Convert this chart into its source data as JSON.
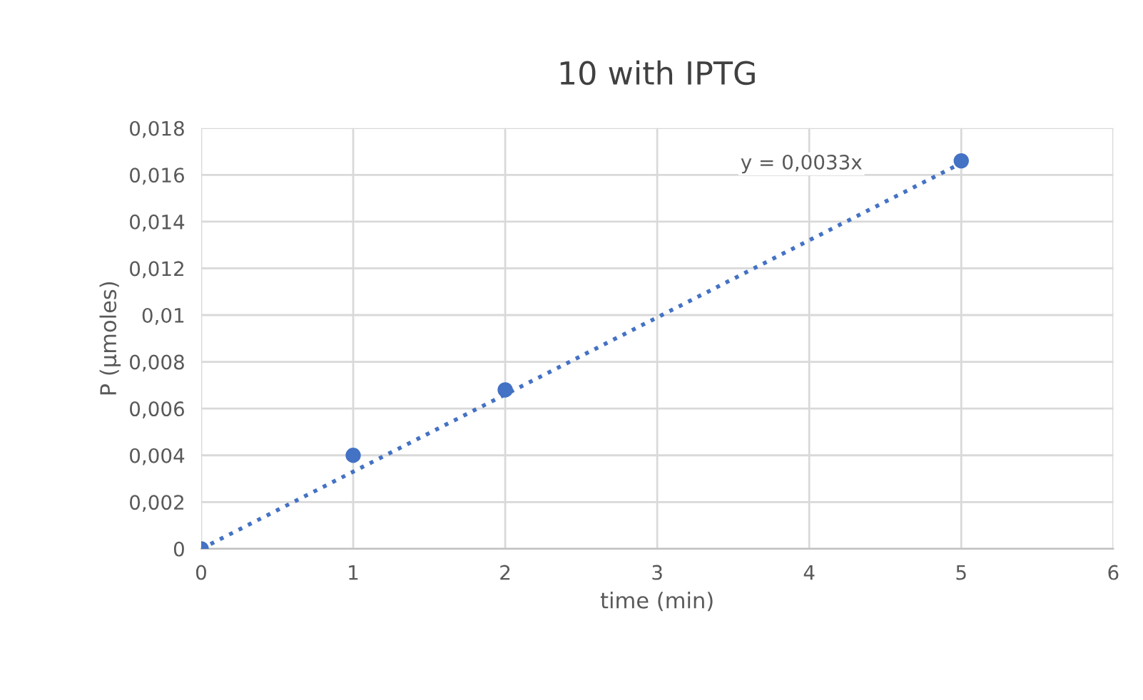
{
  "chart_data": {
    "type": "scatter",
    "title": "10 with IPTG",
    "xlabel": "time (min)",
    "ylabel": "P (µmoles)",
    "x": [
      0,
      1,
      2,
      5
    ],
    "series": [
      {
        "color": "#4472c4",
        "marker": "circle",
        "values": [
          0,
          0.004,
          0.0068,
          0.0166
        ]
      },
      {
        "type": "line",
        "color": "#4472c4",
        "line_style": "dotted",
        "marker": "none",
        "x": [
          0,
          5
        ],
        "values": [
          0,
          0.0165
        ]
      }
    ],
    "annotations": [
      "y = 0,0033x"
    ],
    "xlim": [
      0,
      6
    ],
    "xticks": [
      0,
      1,
      2,
      3,
      4,
      5,
      6
    ],
    "ylim": [
      0,
      0.018
    ],
    "yticks": [
      0,
      {
        "value": 0.002,
        "label": "0,002"
      },
      {
        "value": 0.004,
        "label": "0,004"
      },
      {
        "value": 0.006,
        "label": "0,006"
      },
      {
        "value": 0.008,
        "label": "0,008"
      },
      {
        "value": 0.01,
        "label": "0,01"
      },
      {
        "value": 0.012,
        "label": "0,012"
      },
      {
        "value": 0.014,
        "label": "0,014"
      },
      {
        "value": 0.016,
        "label": "0,016"
      },
      {
        "value": 0.018,
        "label": "0,018"
      }
    ],
    "grid": true
  }
}
